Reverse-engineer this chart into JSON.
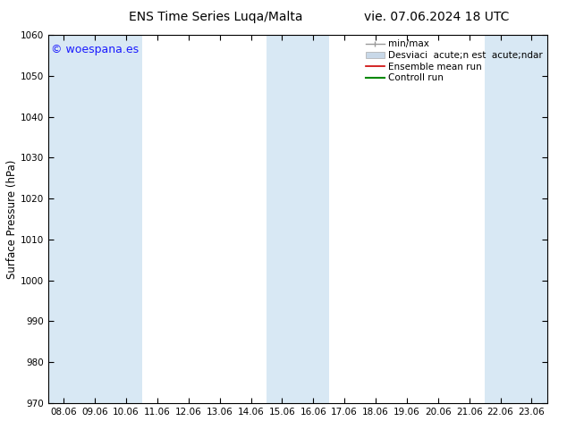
{
  "title_left": "ENS Time Series Luqa/Malta",
  "title_right": "vie. 07.06.2024 18 UTC",
  "ylabel": "Surface Pressure (hPa)",
  "ylim": [
    970,
    1060
  ],
  "yticks": [
    970,
    980,
    990,
    1000,
    1010,
    1020,
    1030,
    1040,
    1050,
    1060
  ],
  "xlabels": [
    "08.06",
    "09.06",
    "10.06",
    "11.06",
    "12.06",
    "13.06",
    "14.06",
    "15.06",
    "16.06",
    "17.06",
    "18.06",
    "19.06",
    "20.06",
    "21.06",
    "22.06",
    "23.06"
  ],
  "shaded_indices": [
    0,
    1,
    2,
    7,
    8,
    14,
    15
  ],
  "band_color": "#d8e8f4",
  "bg_color": "#ffffff",
  "watermark": "© woespana.es",
  "watermark_color": "#1a1aff",
  "legend_minmax_label": "min/max",
  "legend_std_label": "Desviaci  acute;n est  acute;ndar",
  "legend_ens_label": "Ensemble mean run",
  "legend_ctrl_label": "Controll run",
  "title_fontsize": 10,
  "tick_fontsize": 7.5,
  "ylabel_fontsize": 8.5,
  "legend_fontsize": 7.5,
  "watermark_fontsize": 9
}
